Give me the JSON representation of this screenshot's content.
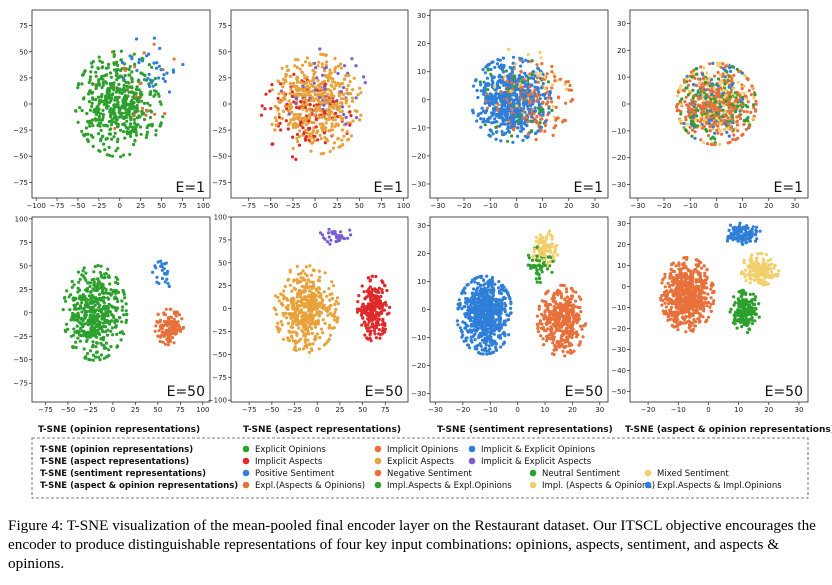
{
  "colors": {
    "green": "#2ca02c",
    "orange": "#e8703a",
    "blue": "#2f7fd8",
    "gold": "#e9a23b",
    "red": "#de2a2a",
    "purple": "#7b5fd0",
    "yellow": "#f2cf6a"
  },
  "panel_titles": [
    "T-SNE  (opinion representations)",
    "T-SNE (aspect representations)",
    "T-SNE (sentiment representations)",
    "T-SNE  (aspect & opinion representations)"
  ],
  "legend": {
    "rows": [
      {
        "title": "T-SNE (opinion representations)",
        "items": [
          {
            "label": "Explicit Opinions",
            "color": "#2ca02c"
          },
          {
            "label": "Implicit Opinions",
            "color": "#e8703a"
          },
          {
            "label": "Implicit & Explicit Opinions",
            "color": "#2f7fd8"
          }
        ]
      },
      {
        "title": "T-SNE (aspect representations)",
        "items": [
          {
            "label": "Implicit Aspects",
            "color": "#de2a2a"
          },
          {
            "label": "Explicit Aspects",
            "color": "#e9a23b"
          },
          {
            "label": "Implicit & Explicit Aspects",
            "color": "#7b5fd0"
          }
        ]
      },
      {
        "title": "T-SNE (sentiment representations)",
        "items": [
          {
            "label": "Positive Sentiment",
            "color": "#2f7fd8"
          },
          {
            "label": "Negative Sentiment",
            "color": "#e8703a"
          },
          {
            "label": "Neutral Sentiment",
            "color": "#2ca02c"
          },
          {
            "label": "Mixed Sentiment",
            "color": "#f2cf6a"
          }
        ]
      },
      {
        "title": "T-SNE  (aspect & opinion representations)",
        "items": [
          {
            "label": "Expl.(Aspects & Opinions)",
            "color": "#e8703a"
          },
          {
            "label": "Impl.Aspects & Expl.Opinions",
            "color": "#2ca02c"
          },
          {
            "label": "Impl. (Aspects & Opinions)",
            "color": "#f2cf6a"
          },
          {
            "label": "Expl.Aspects & Impl.Opinions",
            "color": "#2f7fd8"
          }
        ]
      }
    ]
  },
  "caption": "Figure 4: T-SNE visualization of the mean-pooled final encoder layer on the Restaurant dataset. Our ITSCL objective encourages the encoder to produce distinguishable representations of four key input combinations: opinions, aspects, sentiment, and aspects & opinions.",
  "chart_data": [
    {
      "type": "scatter",
      "label": "E=1",
      "representation": "opinion",
      "x_ticks": [
        "−100",
        "−75",
        "−50",
        "−25",
        "0",
        "25",
        "50",
        "75",
        "100"
      ],
      "y_ticks": [
        "75",
        "50",
        "25",
        "0",
        "−25",
        "−50",
        "−75"
      ],
      "xlim": [
        -105,
        108
      ],
      "ylim": [
        -90,
        90
      ],
      "series": [
        {
          "name": "Explicit Opinions",
          "clusters": [
            {
              "cx": 0,
              "cy": 0,
              "sx": 42,
              "sy": 40,
              "n": 520
            }
          ]
        },
        {
          "name": "Implicit Opinions",
          "clusters": [
            {
              "cx": 20,
              "cy": 20,
              "sx": 40,
              "sy": 40,
              "n": 30
            }
          ]
        },
        {
          "name": "Implicit & Explicit Opinions",
          "clusters": [
            {
              "cx": 40,
              "cy": 30,
              "sx": 30,
              "sy": 30,
              "n": 35
            }
          ]
        }
      ]
    },
    {
      "type": "scatter",
      "label": "E=1",
      "representation": "aspect",
      "x_ticks": [
        "−75",
        "−50",
        "−25",
        "0",
        "25",
        "50",
        "75",
        "100"
      ],
      "y_ticks": [
        "75",
        "50",
        "25",
        "0",
        "−25",
        "−50",
        "−75"
      ],
      "xlim": [
        -95,
        105
      ],
      "ylim": [
        -90,
        90
      ],
      "series": [
        {
          "name": "Explicit Aspects",
          "clusters": [
            {
              "cx": 0,
              "cy": 0,
              "sx": 42,
              "sy": 38,
              "n": 480
            }
          ]
        },
        {
          "name": "Implicit Aspects",
          "clusters": [
            {
              "cx": -10,
              "cy": -10,
              "sx": 40,
              "sy": 35,
              "n": 110
            }
          ]
        },
        {
          "name": "Implicit & Explicit Aspects",
          "clusters": [
            {
              "cx": 10,
              "cy": 10,
              "sx": 38,
              "sy": 35,
              "n": 60
            }
          ]
        }
      ]
    },
    {
      "type": "scatter",
      "label": "E=1",
      "representation": "sentiment",
      "x_ticks": [
        "−30",
        "−20",
        "−10",
        "0",
        "10",
        "20",
        "30"
      ],
      "y_ticks": [
        "30",
        "20",
        "10",
        "0",
        "−10",
        "−20",
        "−30"
      ],
      "xlim": [
        -33,
        35
      ],
      "ylim": [
        -35,
        32
      ],
      "series": [
        {
          "name": "Positive Sentiment",
          "clusters": [
            {
              "cx": -2,
              "cy": 0,
              "sx": 12,
              "sy": 12,
              "n": 600
            }
          ]
        },
        {
          "name": "Negative Sentiment",
          "clusters": [
            {
              "cx": 5,
              "cy": 0,
              "sx": 13,
              "sy": 12,
              "n": 180
            }
          ]
        },
        {
          "name": "Neutral Sentiment",
          "clusters": [
            {
              "cx": 0,
              "cy": 0,
              "sx": 12,
              "sy": 12,
              "n": 60
            }
          ]
        },
        {
          "name": "Mixed Sentiment",
          "clusters": [
            {
              "cx": 5,
              "cy": 5,
              "sx": 12,
              "sy": 12,
              "n": 40
            }
          ]
        }
      ]
    },
    {
      "type": "scatter",
      "label": "E=1",
      "representation": "aspect & opinion",
      "x_ticks": [
        "−30",
        "−20",
        "−10",
        "0",
        "10",
        "20",
        "30"
      ],
      "y_ticks": [
        "30",
        "20",
        "10",
        "0",
        "−10",
        "−20",
        "−30"
      ],
      "xlim": [
        -33,
        35
      ],
      "ylim": [
        -35,
        35
      ],
      "series": [
        {
          "name": "Expl.(Aspects & Opinions)",
          "clusters": [
            {
              "cx": 0,
              "cy": 0,
              "sx": 12,
              "sy": 12,
              "n": 380
            }
          ]
        },
        {
          "name": "Impl.Aspects & Expl.Opinions",
          "clusters": [
            {
              "cx": 0,
              "cy": 0,
              "sx": 12,
              "sy": 12,
              "n": 160
            }
          ]
        },
        {
          "name": "Impl. (Aspects & Opinions)",
          "clusters": [
            {
              "cx": 0,
              "cy": 0,
              "sx": 12,
              "sy": 12,
              "n": 140
            }
          ]
        },
        {
          "name": "Expl.Aspects & Impl.Opinions",
          "clusters": [
            {
              "cx": 0,
              "cy": 0,
              "sx": 12,
              "sy": 12,
              "n": 90
            }
          ]
        }
      ]
    },
    {
      "type": "scatter",
      "label": "E=50",
      "representation": "opinion",
      "x_ticks": [
        "−75",
        "−50",
        "−25",
        "0",
        "25",
        "50",
        "75",
        "100"
      ],
      "y_ticks": [
        "100",
        "75",
        "50",
        "25",
        "0",
        "−25",
        "−50",
        "−75"
      ],
      "xlim": [
        -90,
        108
      ],
      "ylim": [
        -95,
        102
      ],
      "series": [
        {
          "name": "Explicit Opinions",
          "clusters": [
            {
              "cx": -20,
              "cy": 0,
              "sx": 28,
              "sy": 40,
              "n": 480
            }
          ]
        },
        {
          "name": "Implicit Opinions",
          "clusters": [
            {
              "cx": 62,
              "cy": -15,
              "sx": 13,
              "sy": 15,
              "n": 140
            }
          ]
        },
        {
          "name": "Implicit & Explicit Opinions",
          "clusters": [
            {
              "cx": 55,
              "cy": 40,
              "sx": 10,
              "sy": 12,
              "n": 25
            }
          ]
        }
      ]
    },
    {
      "type": "scatter",
      "label": "E=50",
      "representation": "aspect",
      "x_ticks": [
        "−75",
        "−50",
        "−25",
        "0",
        "25",
        "50",
        "75"
      ],
      "y_ticks": [
        "100",
        "75",
        "50",
        "25",
        "0",
        "−25",
        "−50",
        "−75",
        "−100"
      ],
      "xlim": [
        -95,
        100
      ],
      "ylim": [
        -102,
        100
      ],
      "series": [
        {
          "name": "Explicit Aspects",
          "clusters": [
            {
              "cx": -12,
              "cy": 0,
              "sx": 28,
              "sy": 38,
              "n": 440
            }
          ]
        },
        {
          "name": "Implicit Aspects",
          "clusters": [
            {
              "cx": 62,
              "cy": 0,
              "sx": 14,
              "sy": 28,
              "n": 230
            }
          ]
        },
        {
          "name": "Implicit & Explicit Aspects",
          "clusters": [
            {
              "cx": 20,
              "cy": 80,
              "sx": 15,
              "sy": 8,
              "n": 35
            }
          ]
        }
      ]
    },
    {
      "type": "scatter",
      "label": "E=50",
      "representation": "sentiment",
      "x_ticks": [
        "−30",
        "−20",
        "−10",
        "0",
        "10",
        "20",
        "30"
      ],
      "y_ticks": [
        "30",
        "20",
        "10",
        "0",
        "−10",
        "−20",
        "−30"
      ],
      "xlim": [
        -32,
        33
      ],
      "ylim": [
        -33,
        33
      ],
      "series": [
        {
          "name": "Positive Sentiment",
          "clusters": [
            {
              "cx": -12,
              "cy": -2,
              "sx": 8,
              "sy": 11,
              "n": 720
            }
          ]
        },
        {
          "name": "Negative Sentiment",
          "clusters": [
            {
              "cx": 16,
              "cy": -4,
              "sx": 7,
              "sy": 10,
              "n": 420
            }
          ]
        },
        {
          "name": "Neutral Sentiment",
          "clusters": [
            {
              "cx": 8,
              "cy": 16,
              "sx": 4,
              "sy": 5,
              "n": 55
            }
          ]
        },
        {
          "name": "Mixed Sentiment",
          "clusters": [
            {
              "cx": 10,
              "cy": 22,
              "sx": 4,
              "sy": 5,
              "n": 110
            }
          ]
        }
      ]
    },
    {
      "type": "scatter",
      "label": "E=50",
      "representation": "aspect & opinion",
      "x_ticks": [
        "−20",
        "−10",
        "0",
        "10",
        "20",
        "30"
      ],
      "y_ticks": [
        "30",
        "20",
        "10",
        "0",
        "−10",
        "−20",
        "−30",
        "−40",
        "−50"
      ],
      "xlim": [
        -26,
        33
      ],
      "ylim": [
        -55,
        33
      ],
      "series": [
        {
          "name": "Expl.(Aspects & Opinions)",
          "clusters": [
            {
              "cx": -7,
              "cy": -4,
              "sx": 7,
              "sy": 14,
              "n": 640
            }
          ]
        },
        {
          "name": "Impl.Aspects & Expl.Opinions",
          "clusters": [
            {
              "cx": 12,
              "cy": -12,
              "sx": 4,
              "sy": 8,
              "n": 190
            }
          ]
        },
        {
          "name": "Impl. (Aspects & Opinions)",
          "clusters": [
            {
              "cx": 17,
              "cy": 8,
              "sx": 5,
              "sy": 6,
              "n": 170
            }
          ]
        },
        {
          "name": "Expl.Aspects & Impl.Opinions",
          "clusters": [
            {
              "cx": 11,
              "cy": 25,
              "sx": 5,
              "sy": 4,
              "n": 130
            }
          ]
        }
      ]
    }
  ]
}
